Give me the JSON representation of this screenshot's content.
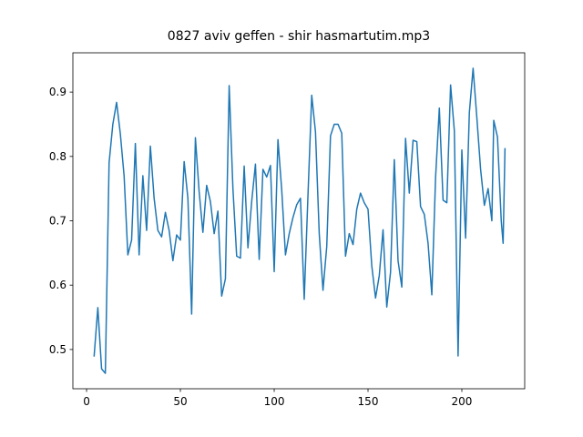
{
  "chart_data": {
    "type": "line",
    "title": "0827 aviv geffen - shir hasmartutim.mp3",
    "x": [
      4,
      6,
      8,
      10,
      12,
      14,
      16,
      18,
      20,
      22,
      24,
      26,
      28,
      30,
      32,
      34,
      36,
      38,
      40,
      42,
      44,
      46,
      48,
      50,
      52,
      54,
      56,
      58,
      60,
      62,
      64,
      66,
      68,
      70,
      72,
      74,
      76,
      78,
      80,
      82,
      84,
      86,
      88,
      90,
      92,
      94,
      96,
      98,
      100,
      102,
      104,
      106,
      108,
      110,
      112,
      114,
      116,
      118,
      120,
      122,
      124,
      126,
      128,
      130,
      132,
      134,
      136,
      138,
      140,
      142,
      144,
      146,
      148,
      150,
      152,
      154,
      156,
      158,
      160,
      162,
      164,
      166,
      168,
      170,
      172,
      174,
      176,
      178,
      180,
      182,
      184,
      186,
      188,
      190,
      192,
      194,
      196,
      198,
      200,
      202,
      204,
      206,
      208,
      210,
      212,
      214,
      216,
      217,
      219,
      221,
      222,
      223
    ],
    "series": [
      {
        "color": "#1f77b4",
        "values": [
          0.489,
          0.565,
          0.47,
          0.463,
          0.79,
          0.85,
          0.884,
          0.835,
          0.77,
          0.647,
          0.67,
          0.82,
          0.647,
          0.77,
          0.685,
          0.816,
          0.735,
          0.685,
          0.675,
          0.713,
          0.685,
          0.638,
          0.678,
          0.67,
          0.792,
          0.735,
          0.555,
          0.829,
          0.745,
          0.682,
          0.755,
          0.73,
          0.68,
          0.715,
          0.583,
          0.61,
          0.91,
          0.75,
          0.645,
          0.642,
          0.785,
          0.658,
          0.73,
          0.788,
          0.64,
          0.78,
          0.768,
          0.786,
          0.621,
          0.826,
          0.748,
          0.647,
          0.68,
          0.705,
          0.725,
          0.735,
          0.578,
          0.74,
          0.895,
          0.838,
          0.68,
          0.592,
          0.66,
          0.832,
          0.85,
          0.85,
          0.836,
          0.645,
          0.68,
          0.663,
          0.718,
          0.743,
          0.728,
          0.718,
          0.63,
          0.58,
          0.615,
          0.686,
          0.566,
          0.62,
          0.795,
          0.638,
          0.597,
          0.828,
          0.743,
          0.825,
          0.823,
          0.722,
          0.71,
          0.665,
          0.585,
          0.767,
          0.875,
          0.732,
          0.728,
          0.911,
          0.84,
          0.49,
          0.81,
          0.673,
          0.868,
          0.937,
          0.86,
          0.78,
          0.724,
          0.75,
          0.7,
          0.856,
          0.83,
          0.7,
          0.665,
          0.813
        ]
      }
    ],
    "xlim": [
      -7.3,
      233.5
    ],
    "ylim": [
      0.439,
      0.961
    ],
    "xticks": [
      0,
      50,
      100,
      150,
      200
    ],
    "yticks": [
      0.5,
      0.6,
      0.7,
      0.8,
      0.9
    ]
  }
}
